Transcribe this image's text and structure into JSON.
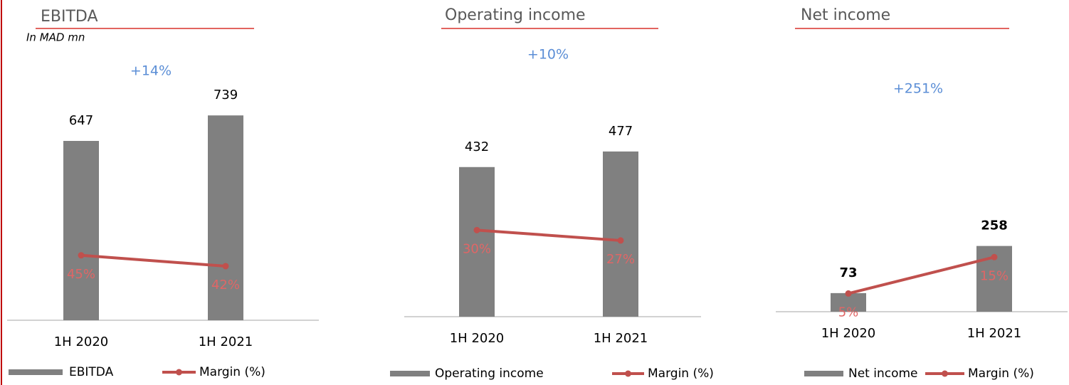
{
  "chart_data": [
    {
      "type": "bar",
      "title": "EBITDA",
      "subtitle": "In MAD mn",
      "annotations": [
        "+14%"
      ],
      "categories": [
        "1H 2020",
        "1H 2021"
      ],
      "series": [
        {
          "name": "EBITDA",
          "color": "#808080",
          "values": [
            647,
            739
          ]
        },
        {
          "name": "Margin (%)",
          "type": "line",
          "axis": "y2",
          "color": "#c0504d",
          "values": [
            45,
            42
          ],
          "value_labels": [
            "45%",
            "42%"
          ]
        }
      ],
      "ylim": [
        0,
        950
      ],
      "y2lim": [
        27,
        100
      ]
    },
    {
      "type": "bar",
      "title": "Operating income",
      "annotations": [
        "+10%"
      ],
      "categories": [
        "1H 2020",
        "1H 2021"
      ],
      "series": [
        {
          "name": "Operating income",
          "color": "#808080",
          "values": [
            432,
            477
          ]
        },
        {
          "name": "Margin (%)",
          "type": "line",
          "axis": "y2",
          "color": "#c0504d",
          "values": [
            30,
            27
          ],
          "value_labels": [
            "30%",
            "27%"
          ]
        }
      ],
      "ylim": [
        0,
        750
      ],
      "y2lim": [
        5,
        80
      ]
    },
    {
      "type": "bar",
      "title": "Net income",
      "annotations": [
        "+251%"
      ],
      "categories": [
        "1H 2020",
        "1H 2021"
      ],
      "series": [
        {
          "name": "Net income",
          "color": "#808080",
          "values": [
            73,
            258
          ]
        },
        {
          "name": "Margin (%)",
          "type": "line",
          "axis": "y2",
          "color": "#c0504d",
          "values": [
            5,
            15
          ],
          "value_labels": [
            "5%",
            "15%"
          ]
        }
      ],
      "ylim": [
        0,
        1000
      ],
      "y2lim": [
        0,
        70
      ]
    }
  ]
}
